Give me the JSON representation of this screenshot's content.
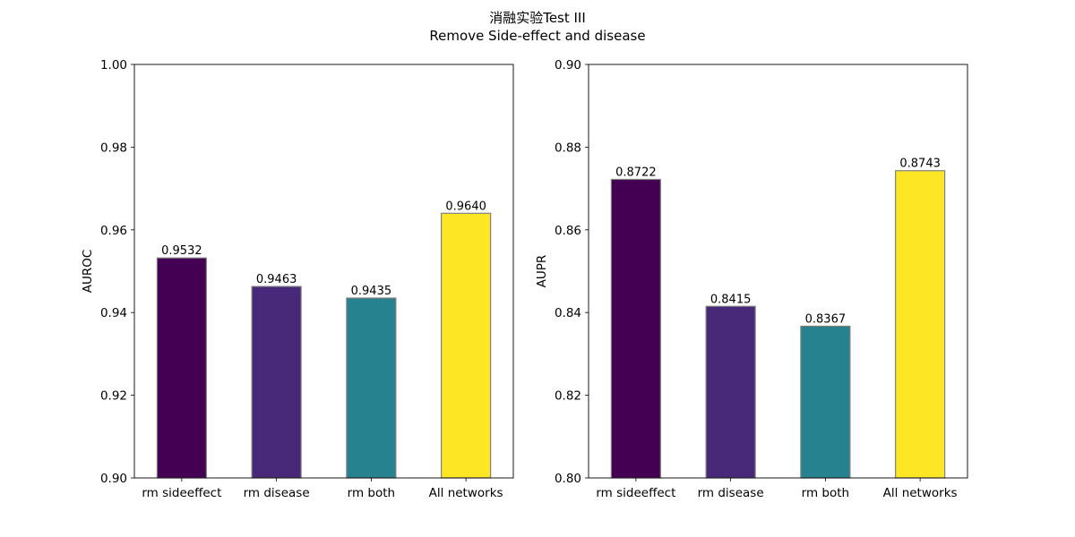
{
  "figure": {
    "title_line1": "消融实验Test III",
    "title_line2": "Remove Side-effect and disease"
  },
  "chart_data": [
    {
      "type": "bar",
      "categories": [
        "rm sideeffect",
        "rm disease",
        "rm both",
        "All networks"
      ],
      "values": [
        0.9532,
        0.9463,
        0.9435,
        0.964
      ],
      "data_labels": [
        "0.9532",
        "0.9463",
        "0.9435",
        "0.9640"
      ],
      "colors": [
        "#440154",
        "#482878",
        "#26828e",
        "#fde725"
      ],
      "edge_color": "#808080",
      "xlabel": "",
      "ylabel": "AUROC",
      "ylim": [
        0.9,
        1.0
      ],
      "yticks": [
        0.9,
        0.92,
        0.94,
        0.96,
        0.98,
        1.0
      ],
      "ytick_labels": [
        "0.90",
        "0.92",
        "0.94",
        "0.96",
        "0.98",
        "1.00"
      ],
      "grid": false,
      "legend": "none"
    },
    {
      "type": "bar",
      "categories": [
        "rm sideeffect",
        "rm disease",
        "rm both",
        "All networks"
      ],
      "values": [
        0.8722,
        0.8415,
        0.8367,
        0.8743
      ],
      "data_labels": [
        "0.8722",
        "0.8415",
        "0.8367",
        "0.8743"
      ],
      "colors": [
        "#440154",
        "#482878",
        "#26828e",
        "#fde725"
      ],
      "edge_color": "#808080",
      "xlabel": "",
      "ylabel": "AUPR",
      "ylim": [
        0.8,
        0.9
      ],
      "yticks": [
        0.8,
        0.82,
        0.84,
        0.86,
        0.88,
        0.9
      ],
      "ytick_labels": [
        "0.80",
        "0.82",
        "0.84",
        "0.86",
        "0.88",
        "0.90"
      ],
      "grid": false,
      "legend": "none"
    }
  ]
}
